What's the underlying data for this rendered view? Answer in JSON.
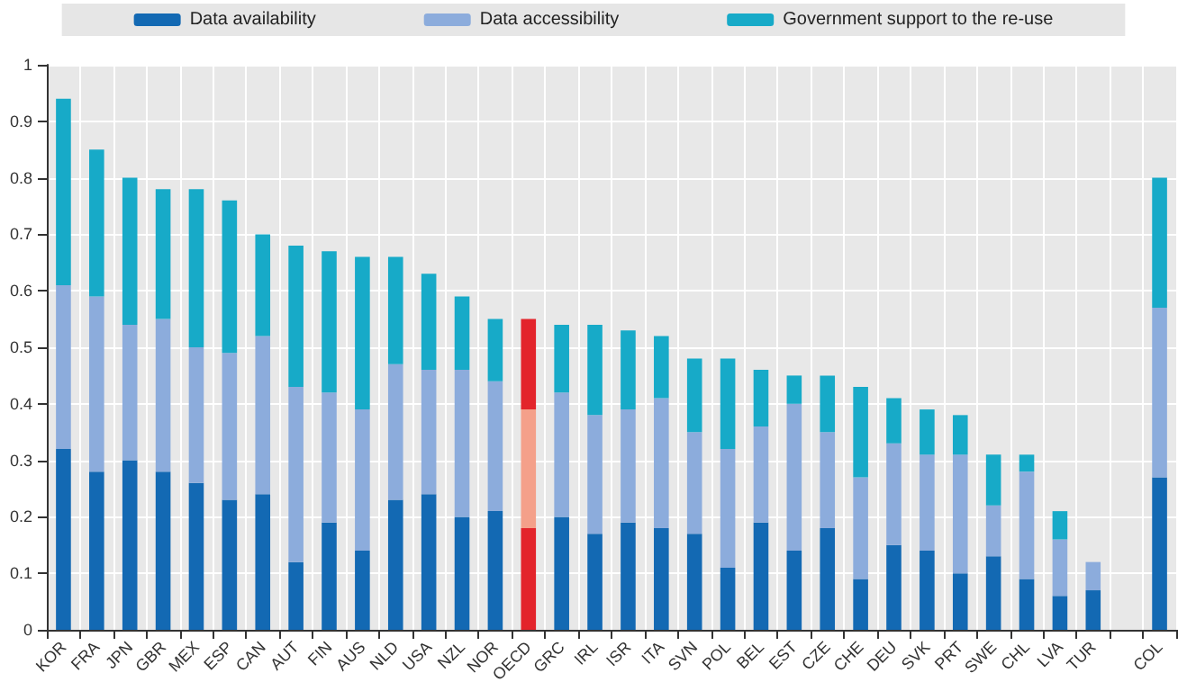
{
  "chart_data": {
    "type": "bar",
    "stacked": true,
    "grid": true,
    "legend": "top",
    "categories": [
      "KOR",
      "FRA",
      "JPN",
      "GBR",
      "MEX",
      "ESP",
      "CAN",
      "AUT",
      "FIN",
      "AUS",
      "NLD",
      "USA",
      "NZL",
      "NOR",
      "OECD",
      "GRC",
      "IRL",
      "ISR",
      "ITA",
      "SVN",
      "POL",
      "BEL",
      "EST",
      "CZE",
      "CHE",
      "DEU",
      "SVK",
      "PRT",
      "SWE",
      "CHL",
      "LVA",
      "TUR",
      null,
      "COL"
    ],
    "ylim": [
      0,
      1
    ],
    "yticks": [
      0,
      0.1,
      0.2,
      0.3,
      0.4,
      0.5,
      0.6,
      0.7,
      0.8,
      0.9,
      1
    ],
    "series": [
      {
        "name": "Data availability",
        "color": "#1369b3",
        "colors": [
          "#1369b3",
          "#1369b3",
          "#1369b3",
          "#1369b3",
          "#1369b3",
          "#1369b3",
          "#1369b3",
          "#1369b3",
          "#1369b3",
          "#1369b3",
          "#1369b3",
          "#1369b3",
          "#1369b3",
          "#1369b3",
          "#e3242b",
          "#1369b3",
          "#1369b3",
          "#1369b3",
          "#1369b3",
          "#1369b3",
          "#1369b3",
          "#1369b3",
          "#1369b3",
          "#1369b3",
          "#1369b3",
          "#1369b3",
          "#1369b3",
          "#1369b3",
          "#1369b3",
          "#1369b3",
          "#1369b3",
          "#1369b3",
          "#1369b3",
          "#1369b3"
        ],
        "values": [
          0.32,
          0.28,
          0.3,
          0.28,
          0.26,
          0.23,
          0.24,
          0.12,
          0.19,
          0.14,
          0.23,
          0.24,
          0.2,
          0.21,
          0.18,
          0.2,
          0.17,
          0.19,
          0.18,
          0.17,
          0.11,
          0.19,
          0.14,
          0.18,
          0.09,
          0.15,
          0.14,
          0.1,
          0.13,
          0.09,
          0.06,
          0.07,
          null,
          0.27
        ]
      },
      {
        "name": "Data accessibility",
        "color": "#8cacdc",
        "colors": [
          "#8cacdc",
          "#8cacdc",
          "#8cacdc",
          "#8cacdc",
          "#8cacdc",
          "#8cacdc",
          "#8cacdc",
          "#8cacdc",
          "#8cacdc",
          "#8cacdc",
          "#8cacdc",
          "#8cacdc",
          "#8cacdc",
          "#8cacdc",
          "#f4a08a",
          "#8cacdc",
          "#8cacdc",
          "#8cacdc",
          "#8cacdc",
          "#8cacdc",
          "#8cacdc",
          "#8cacdc",
          "#8cacdc",
          "#8cacdc",
          "#8cacdc",
          "#8cacdc",
          "#8cacdc",
          "#8cacdc",
          "#8cacdc",
          "#8cacdc",
          "#8cacdc",
          "#8cacdc",
          "#8cacdc",
          "#8cacdc"
        ],
        "values": [
          0.29,
          0.31,
          0.24,
          0.27,
          0.24,
          0.26,
          0.28,
          0.31,
          0.23,
          0.25,
          0.24,
          0.22,
          0.26,
          0.23,
          0.21,
          0.22,
          0.21,
          0.2,
          0.23,
          0.18,
          0.21,
          0.17,
          0.26,
          0.17,
          0.18,
          0.18,
          0.17,
          0.21,
          0.09,
          0.19,
          0.1,
          0.05,
          null,
          0.3
        ]
      },
      {
        "name": "Government support to the re-use",
        "color": "#17aac8",
        "colors": [
          "#17aac8",
          "#17aac8",
          "#17aac8",
          "#17aac8",
          "#17aac8",
          "#17aac8",
          "#17aac8",
          "#17aac8",
          "#17aac8",
          "#17aac8",
          "#17aac8",
          "#17aac8",
          "#17aac8",
          "#17aac8",
          "#e3242b",
          "#17aac8",
          "#17aac8",
          "#17aac8",
          "#17aac8",
          "#17aac8",
          "#17aac8",
          "#17aac8",
          "#17aac8",
          "#17aac8",
          "#17aac8",
          "#17aac8",
          "#17aac8",
          "#17aac8",
          "#17aac8",
          "#17aac8",
          "#17aac8",
          "#17aac8",
          "#17aac8",
          "#17aac8"
        ],
        "values": [
          0.33,
          0.26,
          0.26,
          0.23,
          0.28,
          0.27,
          0.18,
          0.25,
          0.25,
          0.27,
          0.19,
          0.17,
          0.13,
          0.11,
          0.16,
          0.12,
          0.16,
          0.14,
          0.11,
          0.13,
          0.16,
          0.1,
          0.05,
          0.1,
          0.16,
          0.08,
          0.08,
          0.07,
          0.09,
          0.03,
          0.05,
          0,
          null,
          0.23
        ]
      }
    ]
  }
}
